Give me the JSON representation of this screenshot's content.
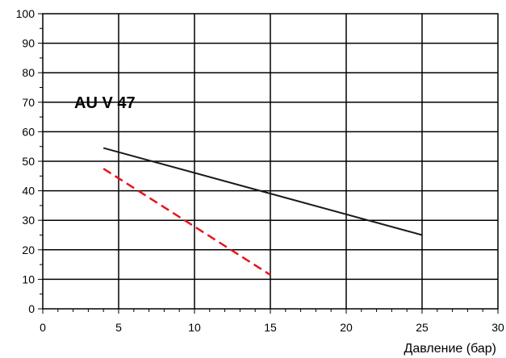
{
  "chart_data": {
    "type": "line",
    "title": "AU V 47",
    "xlabel": "Давление (бар)",
    "ylabel": "",
    "xlim": [
      0,
      30
    ],
    "ylim": [
      0,
      100
    ],
    "x_ticks": [
      "0",
      "5",
      "10",
      "15",
      "20",
      "25",
      "30"
    ],
    "y_ticks": [
      "0",
      "10",
      "20",
      "30",
      "40",
      "50",
      "60",
      "70",
      "80",
      "90",
      "100"
    ],
    "grid": true,
    "series": [
      {
        "color": "#1a1a1a",
        "style": "solid",
        "x": [
          4,
          25
        ],
        "y": [
          54.5,
          25
        ]
      },
      {
        "color": "#e8141c",
        "style": "dashed",
        "x": [
          4,
          15
        ],
        "y": [
          47.5,
          11.5
        ]
      }
    ]
  }
}
